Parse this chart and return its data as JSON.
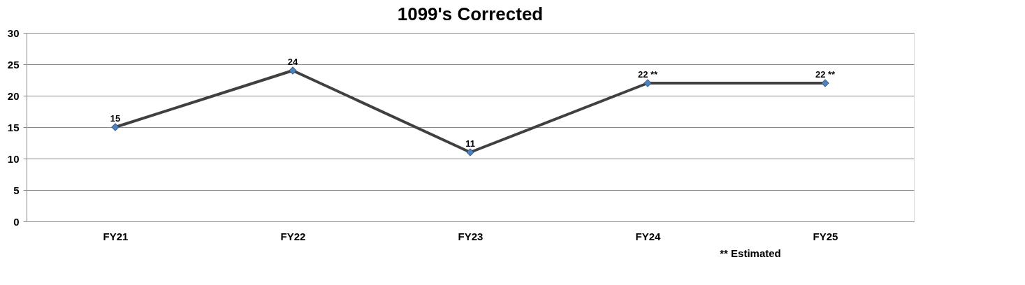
{
  "chart_data": {
    "type": "line",
    "title": "1099's Corrected",
    "categories": [
      "FY21",
      "FY22",
      "FY23",
      "FY24",
      "FY25"
    ],
    "series": [
      {
        "color": "#404040",
        "colors": [
          "#4f81bd",
          "#4f81bd",
          "#4f81bd",
          "#4f81bd",
          "#4f81bd"
        ],
        "values": [
          15,
          24,
          11,
          22,
          22
        ],
        "value_labels": [
          "15",
          "24",
          "11",
          "22 **",
          "22 **"
        ]
      }
    ],
    "ylim": [
      0,
      30
    ],
    "yticks": [
      0,
      5,
      10,
      15,
      20,
      25,
      30
    ],
    "grid": "y",
    "marker": "diamond",
    "line_style": "solid",
    "annotations": [
      "** Estimated"
    ]
  }
}
